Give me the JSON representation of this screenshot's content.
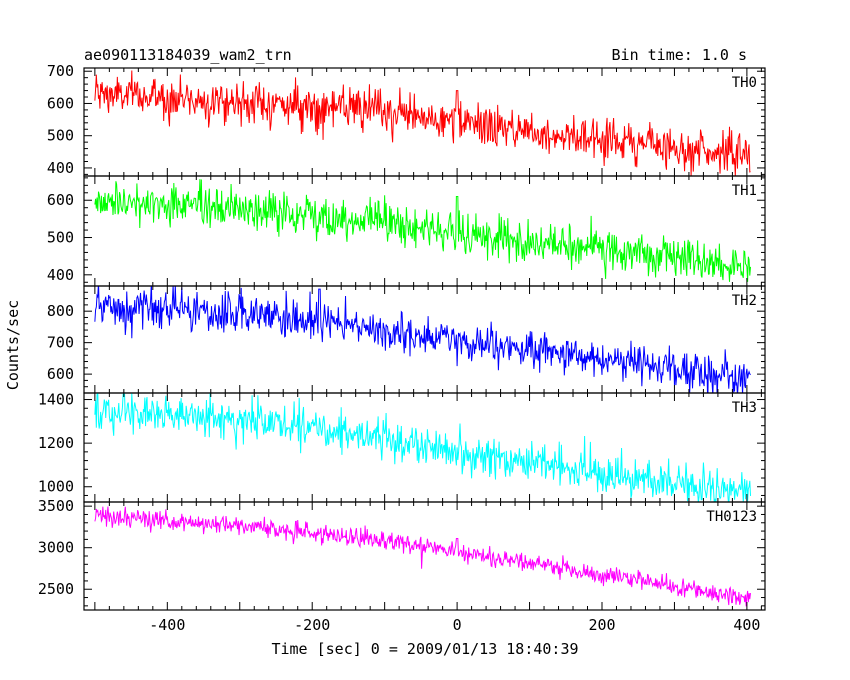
{
  "header": {
    "left_title": "ae090113184039_wam2_trn",
    "right_title": "Bin time: 1.0 s"
  },
  "chart_data": {
    "type": "line",
    "xlabel": "Time [sec] 0 = 2009/01/13 18:40:39",
    "ylabel": "Counts/sec",
    "xlim": [
      -515,
      425
    ],
    "xticks": [
      -400,
      -200,
      0,
      200,
      400
    ],
    "bin_time_s": 1.0,
    "panels": [
      {
        "name": "TH0",
        "color": "#ff0000",
        "ylim": [
          375,
          710
        ],
        "yticks": [
          400,
          500,
          600,
          700
        ],
        "trend": [
          [
            -500,
            630
          ],
          [
            -300,
            605
          ],
          [
            -100,
            575
          ],
          [
            0,
            540
          ],
          [
            200,
            490
          ],
          [
            400,
            440
          ]
        ],
        "noise": 32,
        "spike": {
          "x": 0,
          "y": 640
        }
      },
      {
        "name": "TH1",
        "color": "#00ff00",
        "ylim": [
          370,
          665
        ],
        "yticks": [
          400,
          500,
          600
        ],
        "trend": [
          [
            -500,
            600
          ],
          [
            -300,
            575
          ],
          [
            -100,
            545
          ],
          [
            0,
            510
          ],
          [
            200,
            465
          ],
          [
            400,
            420
          ]
        ],
        "noise": 28,
        "spike": {
          "x": 0,
          "y": 610
        }
      },
      {
        "name": "TH2",
        "color": "#0000ff",
        "ylim": [
          540,
          880
        ],
        "yticks": [
          600,
          700,
          800
        ],
        "trend": [
          [
            -500,
            810
          ],
          [
            -300,
            790
          ],
          [
            -100,
            740
          ],
          [
            0,
            700
          ],
          [
            200,
            650
          ],
          [
            400,
            585
          ]
        ],
        "noise": 32,
        "spike": {
          "x": -190,
          "y": 870
        }
      },
      {
        "name": "TH3",
        "color": "#00ffff",
        "ylim": [
          930,
          1430
        ],
        "yticks": [
          1000,
          1200,
          1400
        ],
        "trend": [
          [
            -500,
            1340
          ],
          [
            -300,
            1310
          ],
          [
            -100,
            1230
          ],
          [
            0,
            1160
          ],
          [
            200,
            1060
          ],
          [
            400,
            970
          ]
        ],
        "noise": 45,
        "spike": {
          "x": -460,
          "y": 1425
        }
      },
      {
        "name": "TH0123",
        "color": "#ff00ff",
        "ylim": [
          2250,
          3550
        ],
        "yticks": [
          2500,
          3000,
          3500
        ],
        "trend": [
          [
            -500,
            3380
          ],
          [
            -300,
            3270
          ],
          [
            -100,
            3090
          ],
          [
            0,
            2940
          ],
          [
            200,
            2680
          ],
          [
            400,
            2380
          ]
        ],
        "noise": 60,
        "spike": {
          "x": 0,
          "y": 3110
        }
      }
    ]
  }
}
